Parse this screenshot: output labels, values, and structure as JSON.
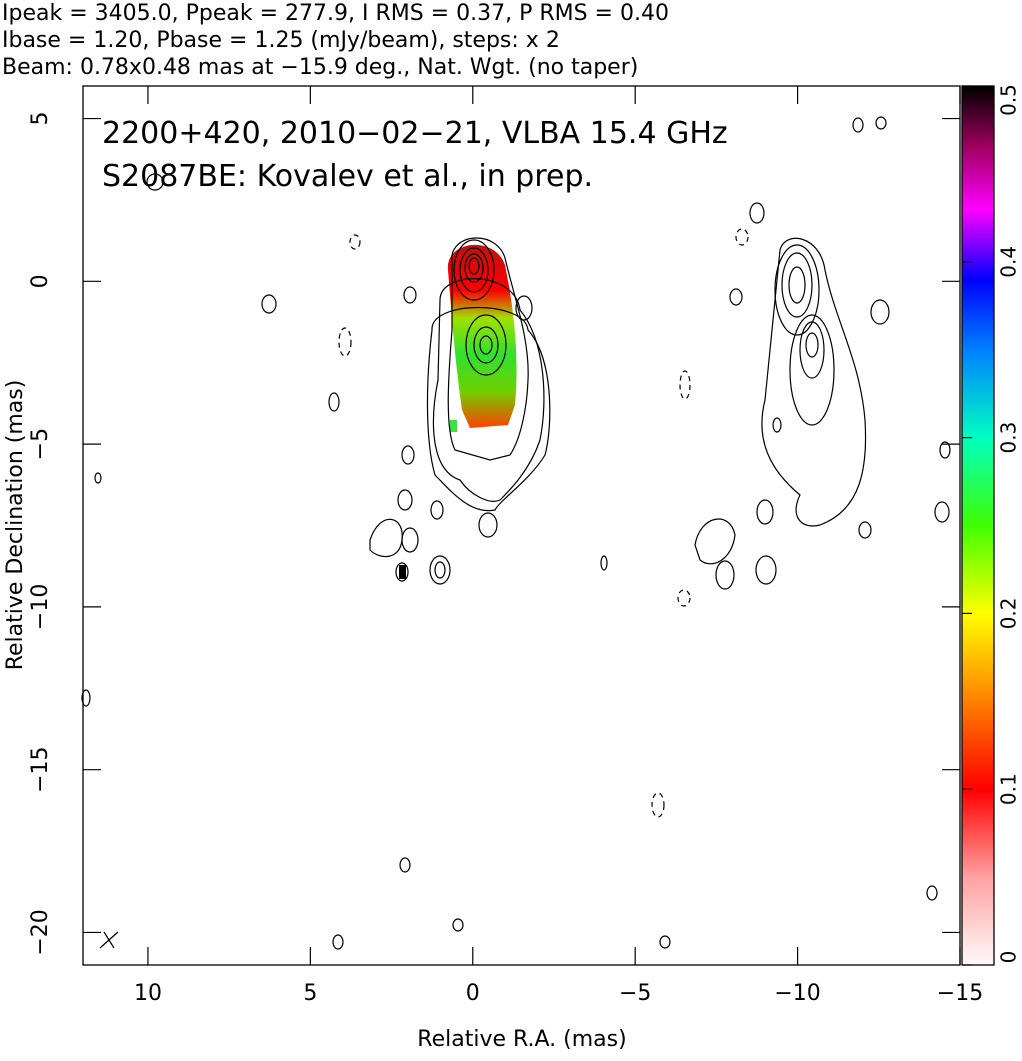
{
  "chart_data": {
    "type": "contour",
    "title_lines": [
      "Ipeak = 3405.0, Ppeak = 277.9, I RMS = 0.37, P RMS = 0.40",
      "Ibase = 1.20, Pbase = 1.25 (mJy/beam), steps: x 2",
      "Beam: 0.78x0.48 mas at −15.9 deg., Nat. Wgt. (no taper)"
    ],
    "annotations": [
      "2200+420, 2010−02−21, VLBA 15.4 GHz",
      "S2087BE: Kovalev et al., in prep."
    ],
    "xlabel": "Relative R.A. (mas)",
    "ylabel": "Relative Declination (mas)",
    "xlim": [
      12,
      -15
    ],
    "ylim": [
      -21,
      6
    ],
    "xticks": [
      10,
      5,
      0,
      {
        "value": -5,
        "label": "−5"
      },
      {
        "value": -10,
        "label": "−10"
      },
      {
        "value": -15,
        "label": "−15"
      }
    ],
    "yticks": [
      5,
      0,
      {
        "value": -5,
        "label": "−5"
      },
      {
        "value": -10,
        "label": "−10"
      },
      {
        "value": -15,
        "label": "−15"
      },
      {
        "value": -20,
        "label": "−20"
      }
    ],
    "colorbar_lim": [
      0,
      0.5
    ],
    "colorbar_ticks": [
      0,
      0.1,
      0.2,
      0.3,
      0.4,
      0.5
    ]
  }
}
